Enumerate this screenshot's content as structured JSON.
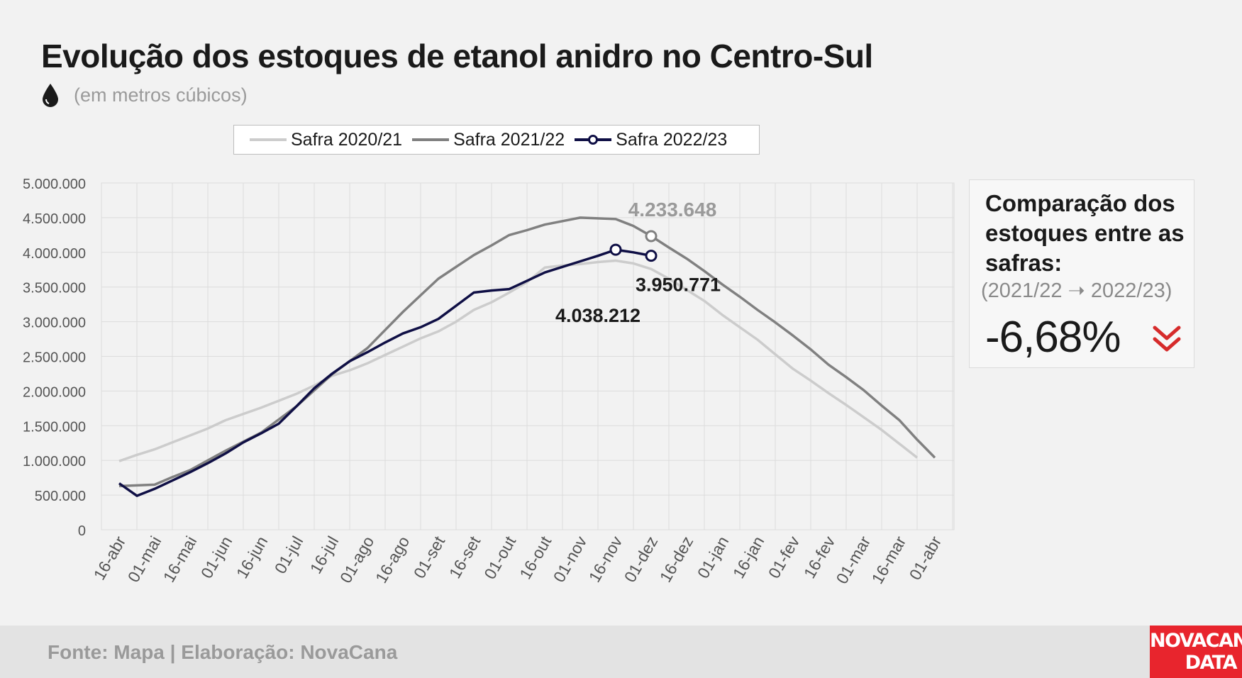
{
  "title": "Evolução dos estoques de etanol anidro no Centro-Sul",
  "subtitle": "(em metros cúbicos)",
  "icons": {
    "unit": "drop-icon",
    "trend": "chevron-double-down-icon"
  },
  "colors": {
    "s2020": "#cccccc",
    "s2021": "#808080",
    "s2022": "#0f0f45",
    "accent": "#d62b2b",
    "logo_bg": "#e8252d"
  },
  "legend": [
    {
      "label": "Safra 2020/21"
    },
    {
      "label": "Safra 2021/22"
    },
    {
      "label": "Safra 2022/23"
    }
  ],
  "chart_data": {
    "type": "line",
    "categories": [
      "16-abr",
      "01-mai",
      "16-mai",
      "01-jun",
      "16-jun",
      "01-jul",
      "16-jul",
      "01-ago",
      "16-ago",
      "01-set",
      "16-set",
      "01-out",
      "16-out",
      "01-nov",
      "16-nov",
      "01-dez",
      "16-dez",
      "01-jan",
      "16-jan",
      "01-fev",
      "16-fev",
      "01-mar",
      "16-mar",
      "01-abr"
    ],
    "y_ticks": [
      "0",
      "500.000",
      "1.000.000",
      "1.500.000",
      "2.000.000",
      "2.500.000",
      "3.000.000",
      "3.500.000",
      "4.000.000",
      "4.500.000",
      "5.000.000"
    ],
    "ylim": [
      0,
      5000000
    ],
    "grid": true,
    "series": [
      {
        "name": "Safra 2020/21",
        "x": [
          0.0,
          0.5,
          1.0,
          1.5,
          2.0,
          2.5,
          3.0,
          3.5,
          4.0,
          4.5,
          5.0,
          5.5,
          6.0,
          6.5,
          7.0,
          7.5,
          8.0,
          8.5,
          9.0,
          9.5,
          10.0,
          10.5,
          11.0,
          11.5,
          12.0,
          12.5,
          13.0,
          13.5,
          14.0,
          14.5,
          15.0,
          15.5,
          16.0,
          16.5,
          17.0,
          17.5,
          18.0,
          18.5,
          19.0,
          19.5,
          20.0,
          20.5,
          21.0,
          21.5,
          22.0,
          22.5
        ],
        "values": [
          990000,
          1080000,
          1160000,
          1260000,
          1360000,
          1460000,
          1580000,
          1670000,
          1760000,
          1860000,
          1960000,
          2080000,
          2220000,
          2300000,
          2400000,
          2520000,
          2640000,
          2760000,
          2860000,
          3000000,
          3170000,
          3280000,
          3420000,
          3570000,
          3780000,
          3810000,
          3830000,
          3860000,
          3880000,
          3840000,
          3760000,
          3620000,
          3460000,
          3300000,
          3100000,
          2920000,
          2740000,
          2530000,
          2320000,
          2150000,
          1970000,
          1800000,
          1620000,
          1440000,
          1240000,
          1040000
        ]
      },
      {
        "name": "Safra 2021/22",
        "x": [
          0.0,
          0.5,
          1.0,
          1.5,
          2.0,
          2.5,
          3.0,
          3.5,
          4.0,
          4.5,
          5.0,
          5.5,
          6.0,
          6.5,
          7.0,
          7.5,
          8.0,
          8.5,
          9.0,
          9.5,
          10.0,
          10.5,
          11.0,
          11.5,
          12.0,
          12.5,
          13.0,
          13.5,
          14.0,
          14.5,
          15.0,
          15.5,
          16.0,
          16.5,
          17.0,
          17.5,
          18.0,
          18.5,
          19.0,
          19.5,
          20.0,
          20.5,
          21.0,
          21.5,
          22.0,
          22.5,
          23.0
        ],
        "values": [
          630000,
          640000,
          650000,
          760000,
          860000,
          1000000,
          1140000,
          1270000,
          1400000,
          1590000,
          1780000,
          2010000,
          2240000,
          2430000,
          2620000,
          2880000,
          3140000,
          3380000,
          3620000,
          3790000,
          3960000,
          4100000,
          4250000,
          4320000,
          4400000,
          4450000,
          4500000,
          4490000,
          4480000,
          4380000,
          4233648,
          4070000,
          3910000,
          3730000,
          3540000,
          3360000,
          3170000,
          2990000,
          2800000,
          2600000,
          2380000,
          2200000,
          2010000,
          1790000,
          1580000,
          1300000,
          1040000
        ]
      },
      {
        "name": "Safra 2022/23",
        "x": [
          0.0,
          0.5,
          1.0,
          1.5,
          2.0,
          2.5,
          3.0,
          3.5,
          4.0,
          4.5,
          5.0,
          5.5,
          6.0,
          6.5,
          7.0,
          7.5,
          8.0,
          8.5,
          9.0,
          9.5,
          10.0,
          10.5,
          11.0,
          11.5,
          12.0,
          12.5,
          13.0,
          13.5,
          14.0,
          14.5,
          15.0
        ],
        "values": [
          670000,
          490000,
          590000,
          710000,
          830000,
          960000,
          1100000,
          1260000,
          1390000,
          1530000,
          1780000,
          2040000,
          2250000,
          2430000,
          2560000,
          2700000,
          2830000,
          2920000,
          3040000,
          3230000,
          3420000,
          3450000,
          3470000,
          3590000,
          3710000,
          3790000,
          3870000,
          3950000,
          4038212,
          4000000,
          3950771
        ]
      }
    ],
    "annotations": [
      {
        "series": "Safra 2021/22",
        "x": 15.0,
        "value": 4233648,
        "label": "4.233.648"
      },
      {
        "series": "Safra 2022/23",
        "x": 15.0,
        "value": 3950771,
        "label": "3.950.771"
      },
      {
        "series": "Safra 2022/23",
        "x": 14.0,
        "value": 4038212,
        "label": "4.038.212"
      }
    ]
  },
  "comparison": {
    "title": "Comparação dos estoques entre as safras:",
    "period": "(2021/22 ➝ 2022/23)",
    "value": "-6,68%"
  },
  "footer": {
    "source": "Fonte: Mapa | Elaboração: NovaCana"
  },
  "logo": {
    "line1": "NOVACANA",
    "line2": "DATA"
  }
}
